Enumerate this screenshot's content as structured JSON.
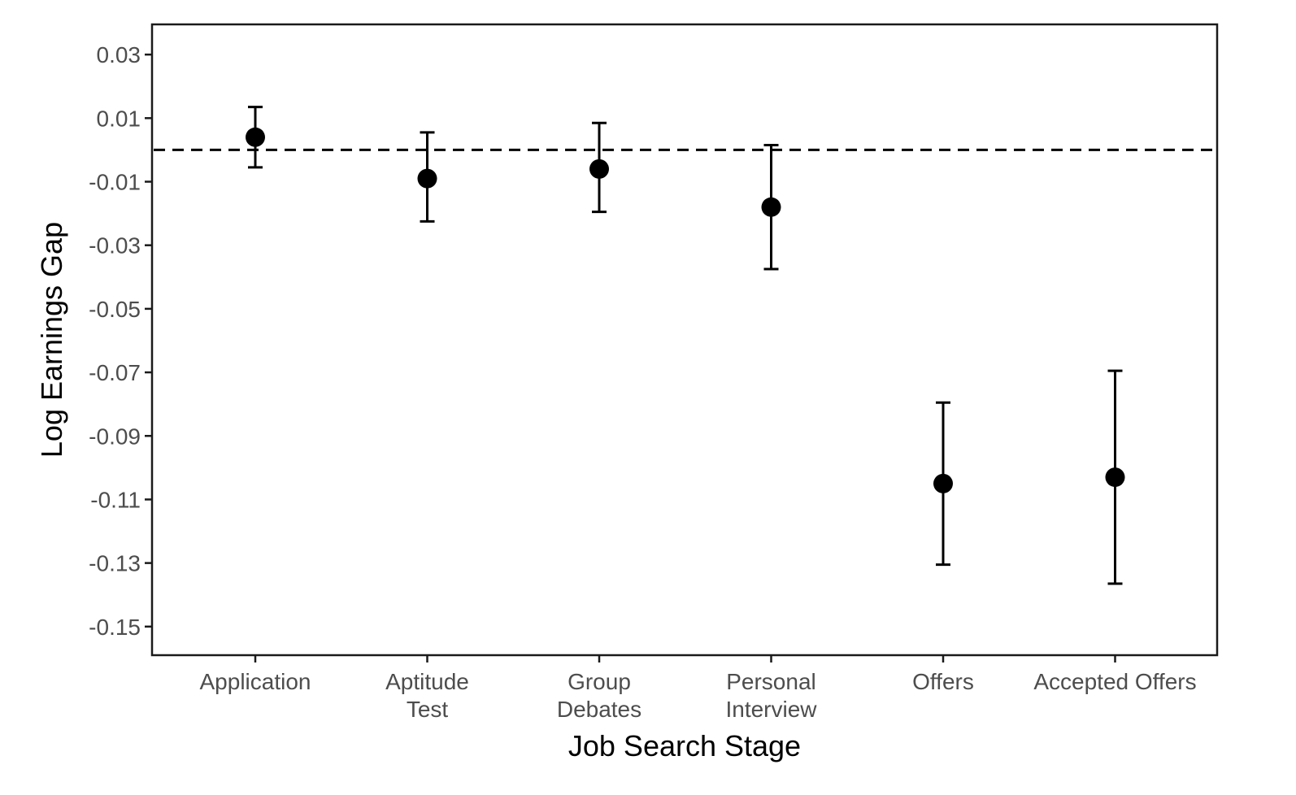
{
  "chart_data": {
    "type": "scatter",
    "subtype": "point-with-error-bars",
    "title": "",
    "xlabel": "Job Search Stage",
    "ylabel": "Log Earnings Gap",
    "categories": [
      [
        "Application"
      ],
      [
        "Aptitude",
        "Test"
      ],
      [
        "Group",
        "Debates"
      ],
      [
        "Personal",
        "Interview"
      ],
      [
        "Offers"
      ],
      [
        "Accepted Offers"
      ]
    ],
    "series": [
      {
        "estimate": [
          0.004,
          -0.009,
          -0.006,
          -0.018,
          -0.105,
          -0.103
        ],
        "ci_low": [
          -0.0055,
          -0.0225,
          -0.0195,
          -0.0375,
          -0.1305,
          -0.1365
        ],
        "ci_high": [
          0.0135,
          0.0055,
          0.0085,
          0.0015,
          -0.0795,
          -0.0695
        ]
      }
    ],
    "yticks": [
      0.03,
      0.01,
      -0.01,
      -0.03,
      -0.05,
      -0.07,
      -0.09,
      -0.11,
      -0.13,
      -0.15
    ],
    "ytick_labels": [
      "0.03",
      "0.01",
      "-0.01",
      "-0.03",
      "-0.05",
      "-0.07",
      "-0.09",
      "-0.11",
      "-0.13",
      "-0.15"
    ],
    "ylim": [
      -0.159,
      0.0395
    ],
    "reference_line": {
      "y": 0,
      "style": "dashed"
    },
    "grid": false,
    "legend": "none",
    "colors": {
      "point": "#000000",
      "errorbar": "#000000",
      "axis": "#1a1a1a",
      "tick_text": "#4d4d4d"
    }
  }
}
